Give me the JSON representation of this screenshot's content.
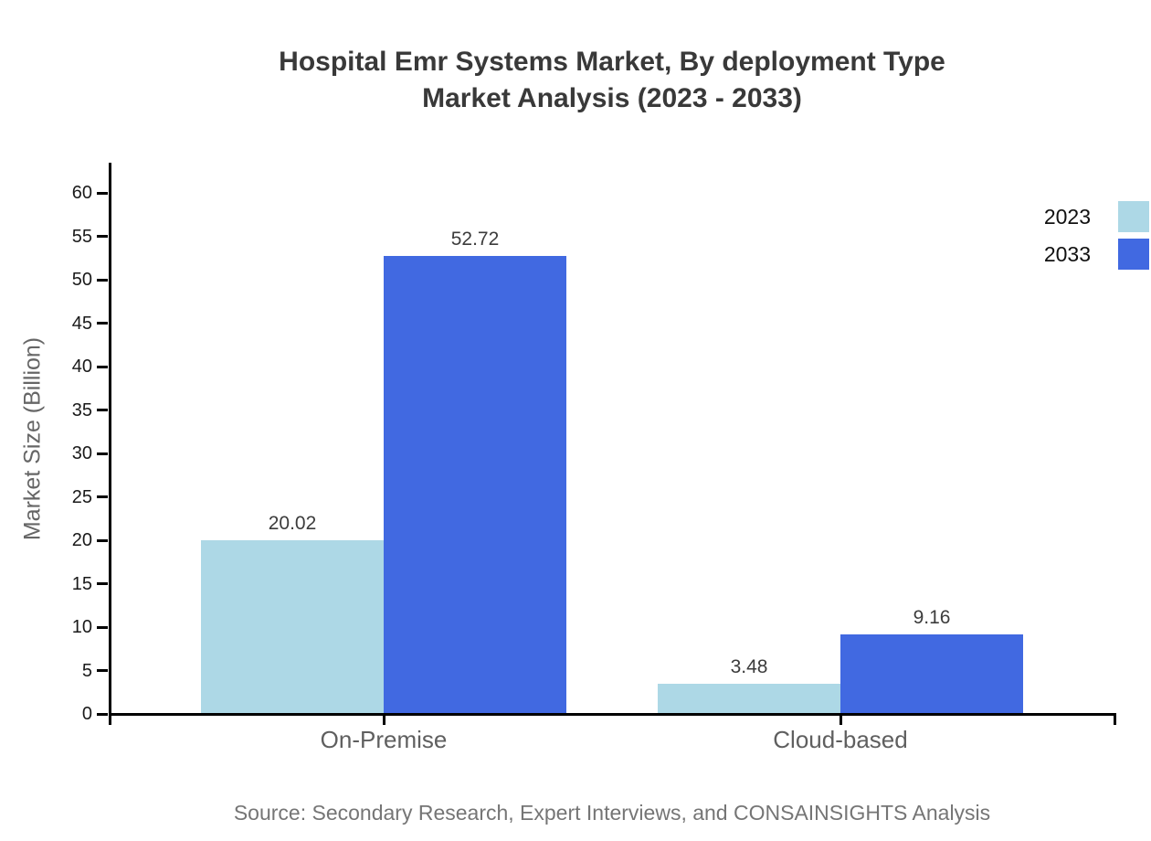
{
  "title": {
    "line1": "Hospital Emr Systems Market, By deployment Type",
    "line2": "Market Analysis (2023 - 2033)"
  },
  "source_note": "Source: Secondary Research, Expert Interviews, and CONSAINSIGHTS Analysis",
  "chart_data": {
    "type": "bar",
    "title": "Hospital Emr Systems Market, By deployment Type Market Analysis (2023 - 2033)",
    "categories": [
      "On-Premise",
      "Cloud-based"
    ],
    "series": [
      {
        "name": "2023",
        "color": "#ADD8E6",
        "values": [
          20.02,
          3.48
        ]
      },
      {
        "name": "2033",
        "color": "#4169E1",
        "values": [
          52.72,
          9.16
        ]
      }
    ],
    "xlabel": "",
    "ylabel": "Market Size (Billion)",
    "ylim": [
      0,
      63.5
    ],
    "yticks": [
      0,
      5,
      10,
      15,
      20,
      25,
      30,
      35,
      40,
      45,
      50,
      55,
      60
    ],
    "grid": false,
    "legend_position": "top-right",
    "value_label_decimals": 2,
    "colors": {
      "axis": "#000000",
      "tick_label": "#1a1a1a",
      "value_label": "#3c3c3c",
      "category_label": "#5f5f5f",
      "axis_title": "#666666",
      "title": "#393939",
      "source": "#757575",
      "background": "#ffffff"
    }
  }
}
